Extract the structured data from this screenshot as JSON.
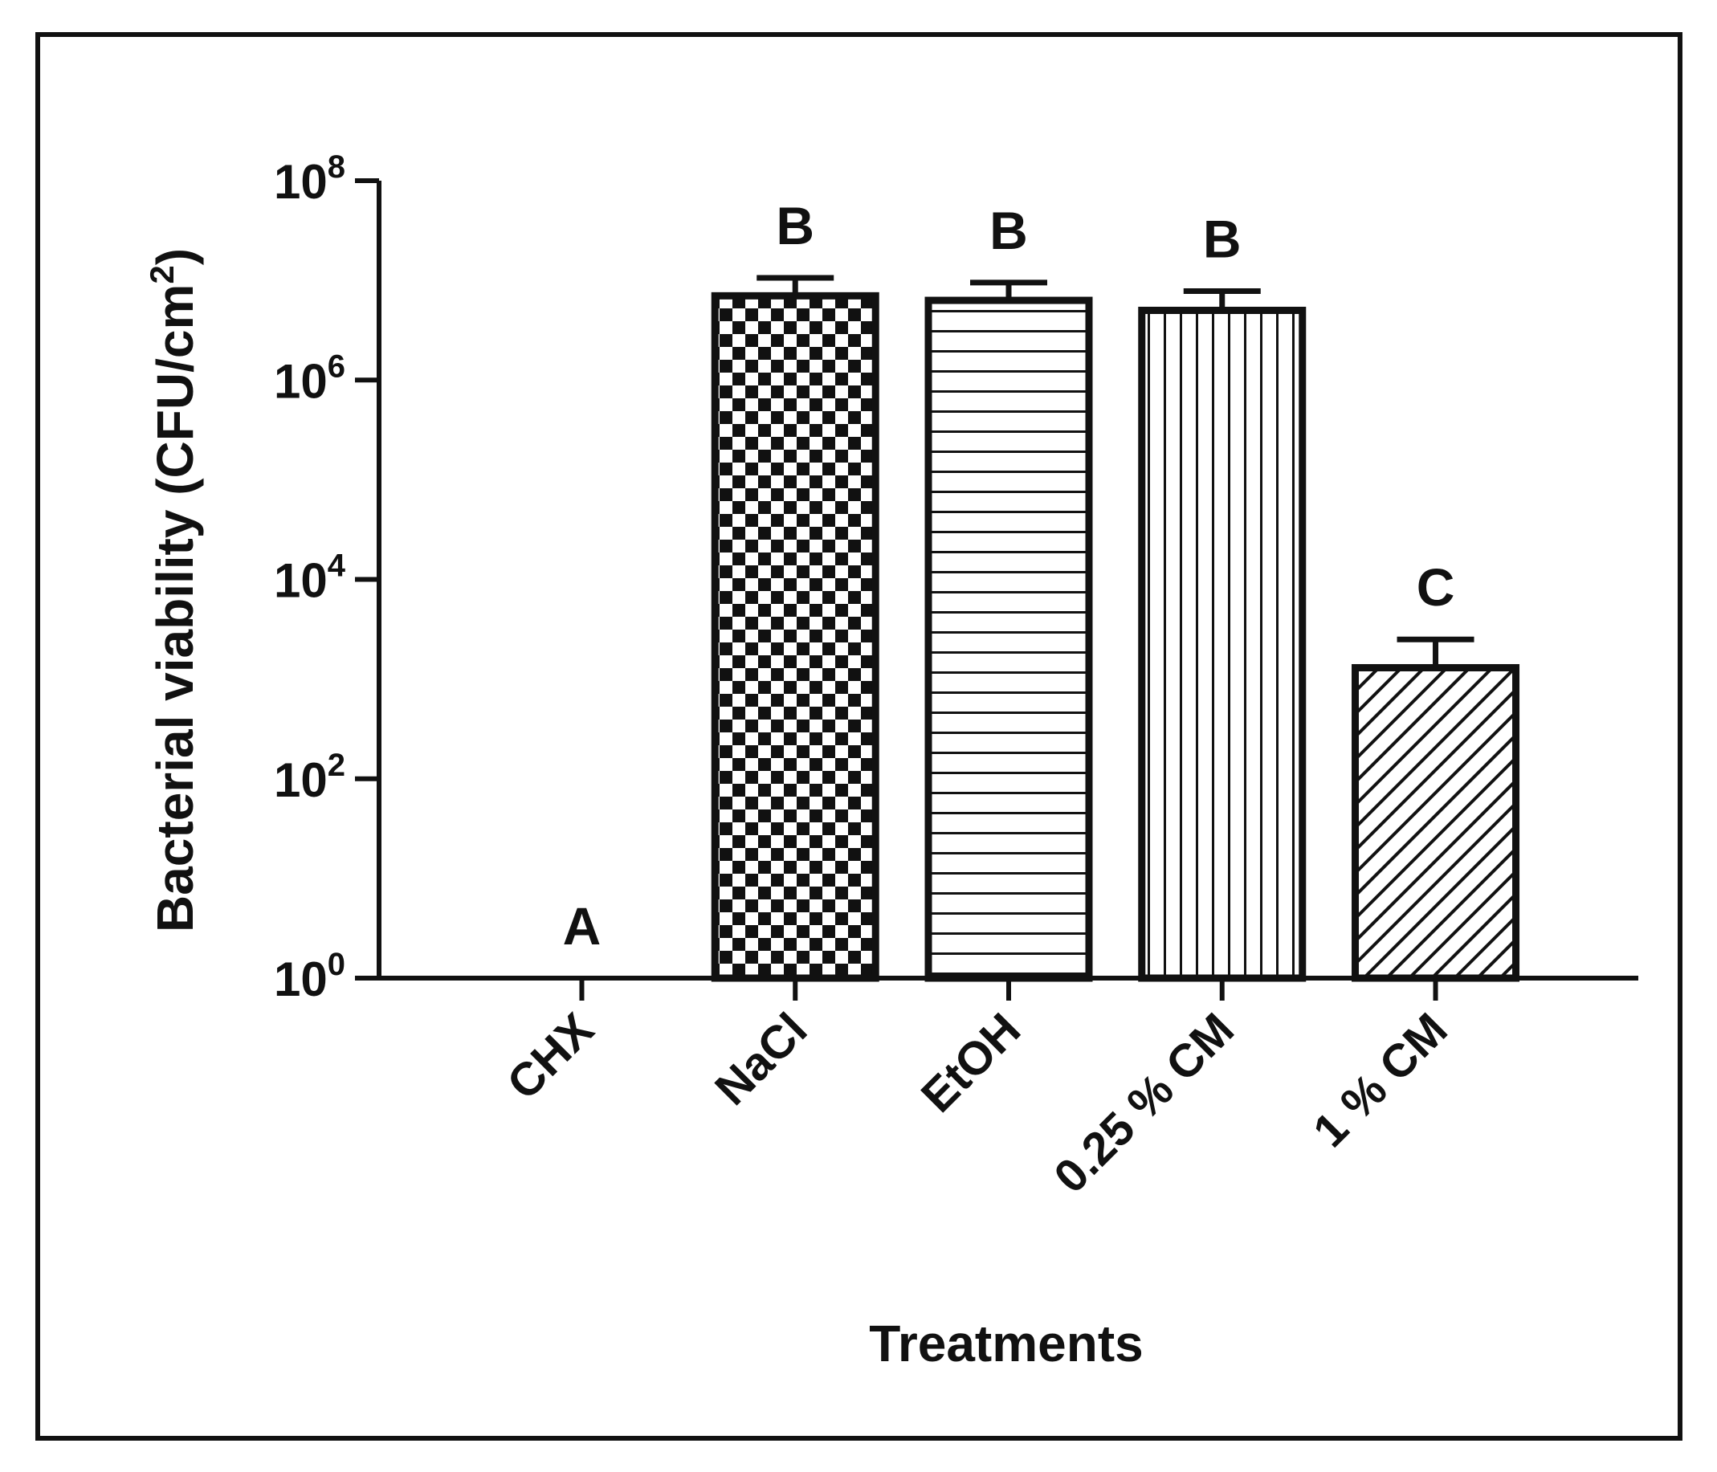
{
  "chart_data": {
    "type": "bar",
    "scale": "log10",
    "title": "",
    "xlabel": "Treatments",
    "ylabel": {
      "prefix": "Bacterial viability (CFU/cm",
      "superscript": "2",
      "suffix": ")"
    },
    "ylim": [
      1,
      100000000
    ],
    "yticks": [
      {
        "base": "10",
        "exp": "0",
        "value": 1
      },
      {
        "base": "10",
        "exp": "2",
        "value": 100
      },
      {
        "base": "10",
        "exp": "4",
        "value": 10000
      },
      {
        "base": "10",
        "exp": "6",
        "value": 1000000
      },
      {
        "base": "10",
        "exp": "8",
        "value": 100000000
      }
    ],
    "categories": [
      "CHX",
      "NaCl",
      "EtOH",
      "0.25 % CM",
      "1 % CM"
    ],
    "values": [
      1,
      7000000,
      6300000,
      5000000,
      1300
    ],
    "errors": [
      0,
      3600000,
      3200000,
      2800000,
      1200
    ],
    "significance_letters": [
      "A",
      "B",
      "B",
      "B",
      "C"
    ],
    "patterns": [
      "none",
      "checker",
      "horizontal",
      "vertical",
      "diagonal"
    ],
    "colors": {
      "stroke": "#111111",
      "background": "#ffffff"
    }
  }
}
